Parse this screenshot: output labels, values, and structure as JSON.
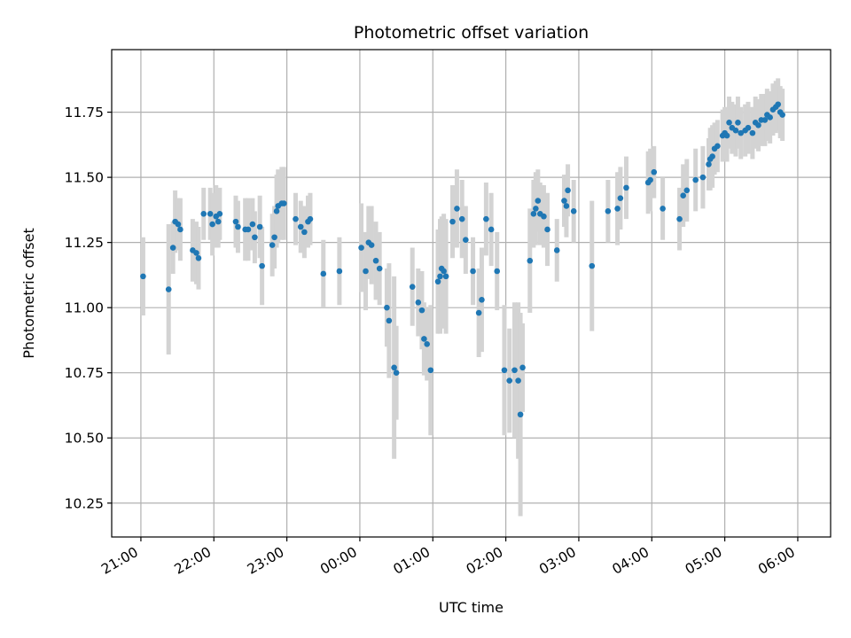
{
  "chart_data": {
    "type": "scatter",
    "title": "Photometric offset variation",
    "xlabel": "UTC time",
    "ylabel": "Photometric offset",
    "x_unit": "hours after 21:00 UTC",
    "xlim": [
      -0.4,
      9.45
    ],
    "ylim": [
      10.12,
      11.99
    ],
    "grid": true,
    "legend": "none",
    "colors": {
      "marker": "#1f77b4",
      "errorbar": "#d3d3d3",
      "grid": "#b0b0b0"
    },
    "xticks": [
      {
        "value": 0,
        "label": "21:00"
      },
      {
        "value": 1,
        "label": "22:00"
      },
      {
        "value": 2,
        "label": "23:00"
      },
      {
        "value": 3,
        "label": "00:00"
      },
      {
        "value": 4,
        "label": "01:00"
      },
      {
        "value": 5,
        "label": "02:00"
      },
      {
        "value": 6,
        "label": "03:00"
      },
      {
        "value": 7,
        "label": "04:00"
      },
      {
        "value": 8,
        "label": "05:00"
      },
      {
        "value": 9,
        "label": "06:00"
      }
    ],
    "yticks": [
      {
        "value": 10.25,
        "label": "10.25"
      },
      {
        "value": 10.5,
        "label": "10.50"
      },
      {
        "value": 10.75,
        "label": "10.75"
      },
      {
        "value": 11.0,
        "label": "11.00"
      },
      {
        "value": 11.25,
        "label": "11.25"
      },
      {
        "value": 11.5,
        "label": "11.50"
      },
      {
        "value": 11.75,
        "label": "11.75"
      }
    ],
    "series": [
      {
        "name": "Photometric offset",
        "points": [
          [
            0.03,
            11.12,
            0.15
          ],
          [
            0.38,
            11.07,
            0.25
          ],
          [
            0.44,
            11.23,
            0.1
          ],
          [
            0.47,
            11.33,
            0.12
          ],
          [
            0.51,
            11.32,
            0.1
          ],
          [
            0.54,
            11.3,
            0.12
          ],
          [
            0.71,
            11.22,
            0.12
          ],
          [
            0.76,
            11.21,
            0.12
          ],
          [
            0.79,
            11.19,
            0.12
          ],
          [
            0.86,
            11.36,
            0.1
          ],
          [
            0.95,
            11.36,
            0.1
          ],
          [
            0.98,
            11.32,
            0.12
          ],
          [
            1.03,
            11.35,
            0.12
          ],
          [
            1.06,
            11.33,
            0.1
          ],
          [
            1.08,
            11.36,
            0.1
          ],
          [
            1.3,
            11.33,
            0.1
          ],
          [
            1.33,
            11.31,
            0.1
          ],
          [
            1.43,
            11.3,
            0.12
          ],
          [
            1.47,
            11.3,
            0.12
          ],
          [
            1.53,
            11.32,
            0.1
          ],
          [
            1.56,
            11.27,
            0.1
          ],
          [
            1.63,
            11.31,
            0.12
          ],
          [
            1.66,
            11.16,
            0.15
          ],
          [
            1.8,
            11.24,
            0.12
          ],
          [
            1.83,
            11.27,
            0.12
          ],
          [
            1.86,
            11.37,
            0.14
          ],
          [
            1.88,
            11.39,
            0.14
          ],
          [
            1.93,
            11.4,
            0.14
          ],
          [
            1.96,
            11.4,
            0.14
          ],
          [
            2.12,
            11.34,
            0.1
          ],
          [
            2.19,
            11.31,
            0.1
          ],
          [
            2.24,
            11.29,
            0.1
          ],
          [
            2.29,
            11.33,
            0.1
          ],
          [
            2.32,
            11.34,
            0.1
          ],
          [
            2.5,
            11.13,
            0.13
          ],
          [
            2.72,
            11.14,
            0.13
          ],
          [
            3.02,
            11.23,
            0.17
          ],
          [
            3.08,
            11.14,
            0.15
          ],
          [
            3.12,
            11.25,
            0.14
          ],
          [
            3.16,
            11.24,
            0.15
          ],
          [
            3.22,
            11.18,
            0.15
          ],
          [
            3.27,
            11.15,
            0.14
          ],
          [
            3.37,
            11.0,
            0.15
          ],
          [
            3.4,
            10.95,
            0.22
          ],
          [
            3.47,
            10.77,
            0.35
          ],
          [
            3.5,
            10.75,
            0.18
          ],
          [
            3.72,
            11.08,
            0.15
          ],
          [
            3.8,
            11.02,
            0.13
          ],
          [
            3.85,
            10.99,
            0.15
          ],
          [
            3.88,
            10.88,
            0.14
          ],
          [
            3.92,
            10.86,
            0.14
          ],
          [
            3.97,
            10.76,
            0.25
          ],
          [
            4.07,
            11.1,
            0.2
          ],
          [
            4.1,
            11.12,
            0.22
          ],
          [
            4.12,
            11.15,
            0.2
          ],
          [
            4.15,
            11.14,
            0.22
          ],
          [
            4.18,
            11.12,
            0.22
          ],
          [
            4.27,
            11.33,
            0.14
          ],
          [
            4.33,
            11.38,
            0.15
          ],
          [
            4.4,
            11.34,
            0.15
          ],
          [
            4.45,
            11.26,
            0.13
          ],
          [
            4.55,
            11.14,
            0.13
          ],
          [
            4.63,
            10.98,
            0.17
          ],
          [
            4.67,
            11.03,
            0.2
          ],
          [
            4.73,
            11.34,
            0.14
          ],
          [
            4.8,
            11.3,
            0.14
          ],
          [
            4.88,
            11.14,
            0.15
          ],
          [
            4.98,
            10.76,
            0.25
          ],
          [
            5.05,
            10.72,
            0.2
          ],
          [
            5.12,
            10.76,
            0.26
          ],
          [
            5.17,
            10.72,
            0.3
          ],
          [
            5.2,
            10.59,
            0.39
          ],
          [
            5.23,
            10.77,
            0.17
          ],
          [
            5.33,
            11.18,
            0.2
          ],
          [
            5.38,
            11.36,
            0.13
          ],
          [
            5.41,
            11.38,
            0.14
          ],
          [
            5.44,
            11.41,
            0.12
          ],
          [
            5.47,
            11.36,
            0.12
          ],
          [
            5.52,
            11.35,
            0.12
          ],
          [
            5.57,
            11.3,
            0.14
          ],
          [
            5.7,
            11.22,
            0.12
          ],
          [
            5.8,
            11.41,
            0.1
          ],
          [
            5.83,
            11.39,
            0.12
          ],
          [
            5.85,
            11.45,
            0.1
          ],
          [
            5.93,
            11.37,
            0.12
          ],
          [
            6.18,
            11.16,
            0.25
          ],
          [
            6.4,
            11.37,
            0.12
          ],
          [
            6.53,
            11.38,
            0.14
          ],
          [
            6.57,
            11.42,
            0.12
          ],
          [
            6.65,
            11.46,
            0.12
          ],
          [
            6.95,
            11.48,
            0.12
          ],
          [
            6.98,
            11.49,
            0.12
          ],
          [
            7.03,
            11.52,
            0.1
          ],
          [
            7.15,
            11.38,
            0.12
          ],
          [
            7.38,
            11.34,
            0.12
          ],
          [
            7.43,
            11.43,
            0.12
          ],
          [
            7.48,
            11.45,
            0.12
          ],
          [
            7.6,
            11.49,
            0.12
          ],
          [
            7.7,
            11.5,
            0.12
          ],
          [
            7.78,
            11.55,
            0.1
          ],
          [
            7.8,
            11.57,
            0.12
          ],
          [
            7.83,
            11.58,
            0.12
          ],
          [
            7.86,
            11.61,
            0.1
          ],
          [
            7.9,
            11.62,
            0.1
          ],
          [
            7.97,
            11.66,
            0.1
          ],
          [
            8.0,
            11.67,
            0.1
          ],
          [
            8.03,
            11.66,
            0.1
          ],
          [
            8.06,
            11.71,
            0.1
          ],
          [
            8.1,
            11.69,
            0.1
          ],
          [
            8.15,
            11.68,
            0.1
          ],
          [
            8.18,
            11.71,
            0.1
          ],
          [
            8.22,
            11.67,
            0.1
          ],
          [
            8.28,
            11.68,
            0.1
          ],
          [
            8.32,
            11.69,
            0.1
          ],
          [
            8.38,
            11.67,
            0.1
          ],
          [
            8.42,
            11.71,
            0.1
          ],
          [
            8.46,
            11.7,
            0.1
          ],
          [
            8.5,
            11.72,
            0.1
          ],
          [
            8.55,
            11.72,
            0.1
          ],
          [
            8.58,
            11.74,
            0.1
          ],
          [
            8.62,
            11.73,
            0.1
          ],
          [
            8.66,
            11.76,
            0.1
          ],
          [
            8.7,
            11.77,
            0.1
          ],
          [
            8.73,
            11.78,
            0.1
          ],
          [
            8.76,
            11.75,
            0.1
          ],
          [
            8.79,
            11.74,
            0.1
          ]
        ]
      }
    ]
  }
}
